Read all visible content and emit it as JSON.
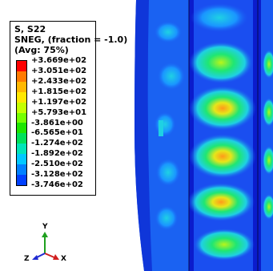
{
  "legend": {
    "title_line1": "S, S22",
    "title_line2": "SNEG, (fraction = -1.0)",
    "title_line3": "(Avg: 75%)",
    "values": [
      "+3.669e+02",
      "+3.051e+02",
      "+2.433e+02",
      "+1.815e+02",
      "+1.197e+02",
      "+5.793e+01",
      "-3.861e+00",
      "-6.565e+01",
      "-1.274e+02",
      "-1.892e+02",
      "-2.510e+02",
      "-3.128e+02",
      "-3.746e+02"
    ],
    "colors": [
      "#ff0000",
      "#ff7a00",
      "#ffb800",
      "#ffe800",
      "#c4ff00",
      "#75ff00",
      "#1ee600",
      "#00e15a",
      "#00e5b8",
      "#00c8ff",
      "#0080ff",
      "#0040ff"
    ]
  },
  "triad": {
    "y_label": "Y",
    "z_label": "Z",
    "x_label": "X"
  },
  "palette": {
    "deep_blue": "#1229e6",
    "blue": "#1a5af2",
    "light_blue": "#1a96ff",
    "cyan": "#1fd1e3",
    "green": "#1fe673",
    "yellow_green": "#b8f51a",
    "orange": "#ff9a1a"
  }
}
